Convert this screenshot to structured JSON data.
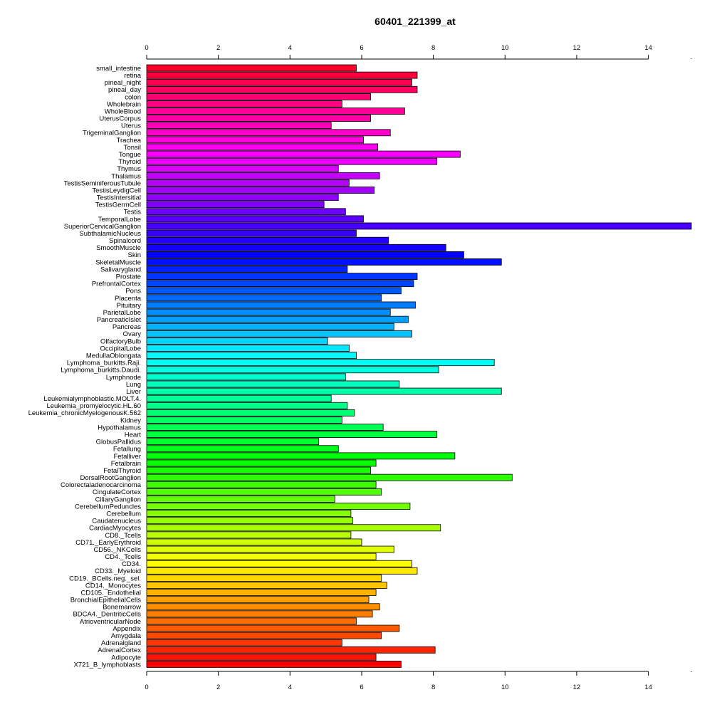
{
  "chart_data": {
    "type": "bar",
    "orientation": "horizontal",
    "title": "60401_221399_at",
    "xlabel": "",
    "ylabel": "",
    "xlim": [
      0,
      15.2
    ],
    "x_ticks": [
      0,
      2,
      4,
      6,
      8,
      10,
      12,
      14
    ],
    "x_tick_labels": [
      "0",
      "2",
      "4",
      "6",
      "8",
      "10",
      "12",
      "14"
    ],
    "axes_positions": [
      "top",
      "bottom"
    ],
    "grid": false,
    "legend": "none",
    "color_scheme": "rainbow (red → magenta → blue → cyan → green → yellow → orange → red)",
    "categories": [
      "small_intestine",
      "retina",
      "pineal_night",
      "pineal_day",
      "colon",
      "Wholebrain",
      "WholeBlood",
      "UterusCorpus",
      "Uterus",
      "TrigeminalGanglion",
      "Trachea",
      "Tonsil",
      "Tongue",
      "Thyroid",
      "Thymus",
      "Thalamus",
      "TestisSeminiferousTubule",
      "TestisLeydigCell",
      "TestisIntersitial",
      "TestisGermCell",
      "Testis",
      "TemporalLobe",
      "SuperiorCervicalGanglion",
      "SubthalamicNucleus",
      "Spinalcord",
      "SmoothMuscle",
      "Skin",
      "SkeletalMuscle",
      "Salivarygland",
      "Prostate",
      "PrefrontalCortex",
      "Pons",
      "Placenta",
      "Pituitary",
      "ParietalLobe",
      "PancreaticIslet",
      "Pancreas",
      "Ovary",
      "OlfactoryBulb",
      "OccipitalLobe",
      "MedullaOblongata",
      "Lymphoma_burkitts.Raji.",
      "Lymphoma_burkitts.Daudi.",
      "Lymphnode",
      "Lung",
      "Liver",
      "Leukemialymphoblastic.MOLT.4.",
      "Leukemia_promyelocytic.HL.60",
      "Leukemia_chronicMyelogenousK.562",
      "Kidney",
      "Hypothalamus",
      "Heart",
      "GlobusPallidus",
      "Fetallung",
      "Fetalliver",
      "Fetalbrain",
      "FetalThyroid",
      "DorsalRootGanglion",
      "Colorectaladenocarcinoma",
      "CingulateCortex",
      "CiliaryGanglion",
      "CerebellumPeduncles",
      "Cerebellum",
      "Caudatenucleus",
      "CardiacMyocytes",
      "CD8._Tcells",
      "CD71._EarlyErythroid",
      "CD56._NKCells",
      "CD4._Tcells",
      "CD34.",
      "CD33._Myeloid",
      "CD19._BCells.neg._sel.",
      "CD14._Monocytes",
      "CD105._Endothelial",
      "BronchialEpithelialCells",
      "Bonemarrow",
      "BDCA4._DentriticCells",
      "AtrioventricularNode",
      "Appendix",
      "Amygdala",
      "Adrenalgland",
      "AdrenalCortex",
      "Adipocyte",
      "X721_B_lymphoblasts"
    ],
    "values": [
      5.85,
      7.55,
      7.4,
      7.55,
      6.25,
      5.45,
      7.2,
      6.25,
      5.15,
      6.8,
      6.05,
      6.45,
      8.75,
      8.1,
      5.35,
      6.5,
      5.65,
      6.35,
      5.35,
      4.95,
      5.55,
      6.05,
      15.2,
      5.85,
      6.75,
      8.35,
      8.85,
      9.9,
      5.6,
      7.55,
      7.45,
      7.1,
      6.55,
      7.5,
      6.8,
      7.3,
      6.9,
      7.4,
      5.05,
      5.65,
      5.85,
      9.7,
      8.15,
      5.55,
      7.05,
      9.9,
      5.15,
      5.6,
      5.8,
      5.45,
      6.6,
      8.1,
      4.8,
      5.35,
      8.6,
      6.4,
      6.25,
      10.2,
      6.4,
      6.55,
      5.25,
      7.35,
      5.7,
      5.75,
      8.2,
      5.7,
      6.0,
      6.9,
      6.4,
      7.4,
      7.55,
      6.55,
      6.7,
      6.4,
      6.2,
      6.5,
      6.3,
      5.85,
      7.05,
      6.55,
      5.45,
      8.05,
      6.4,
      7.1
    ]
  }
}
